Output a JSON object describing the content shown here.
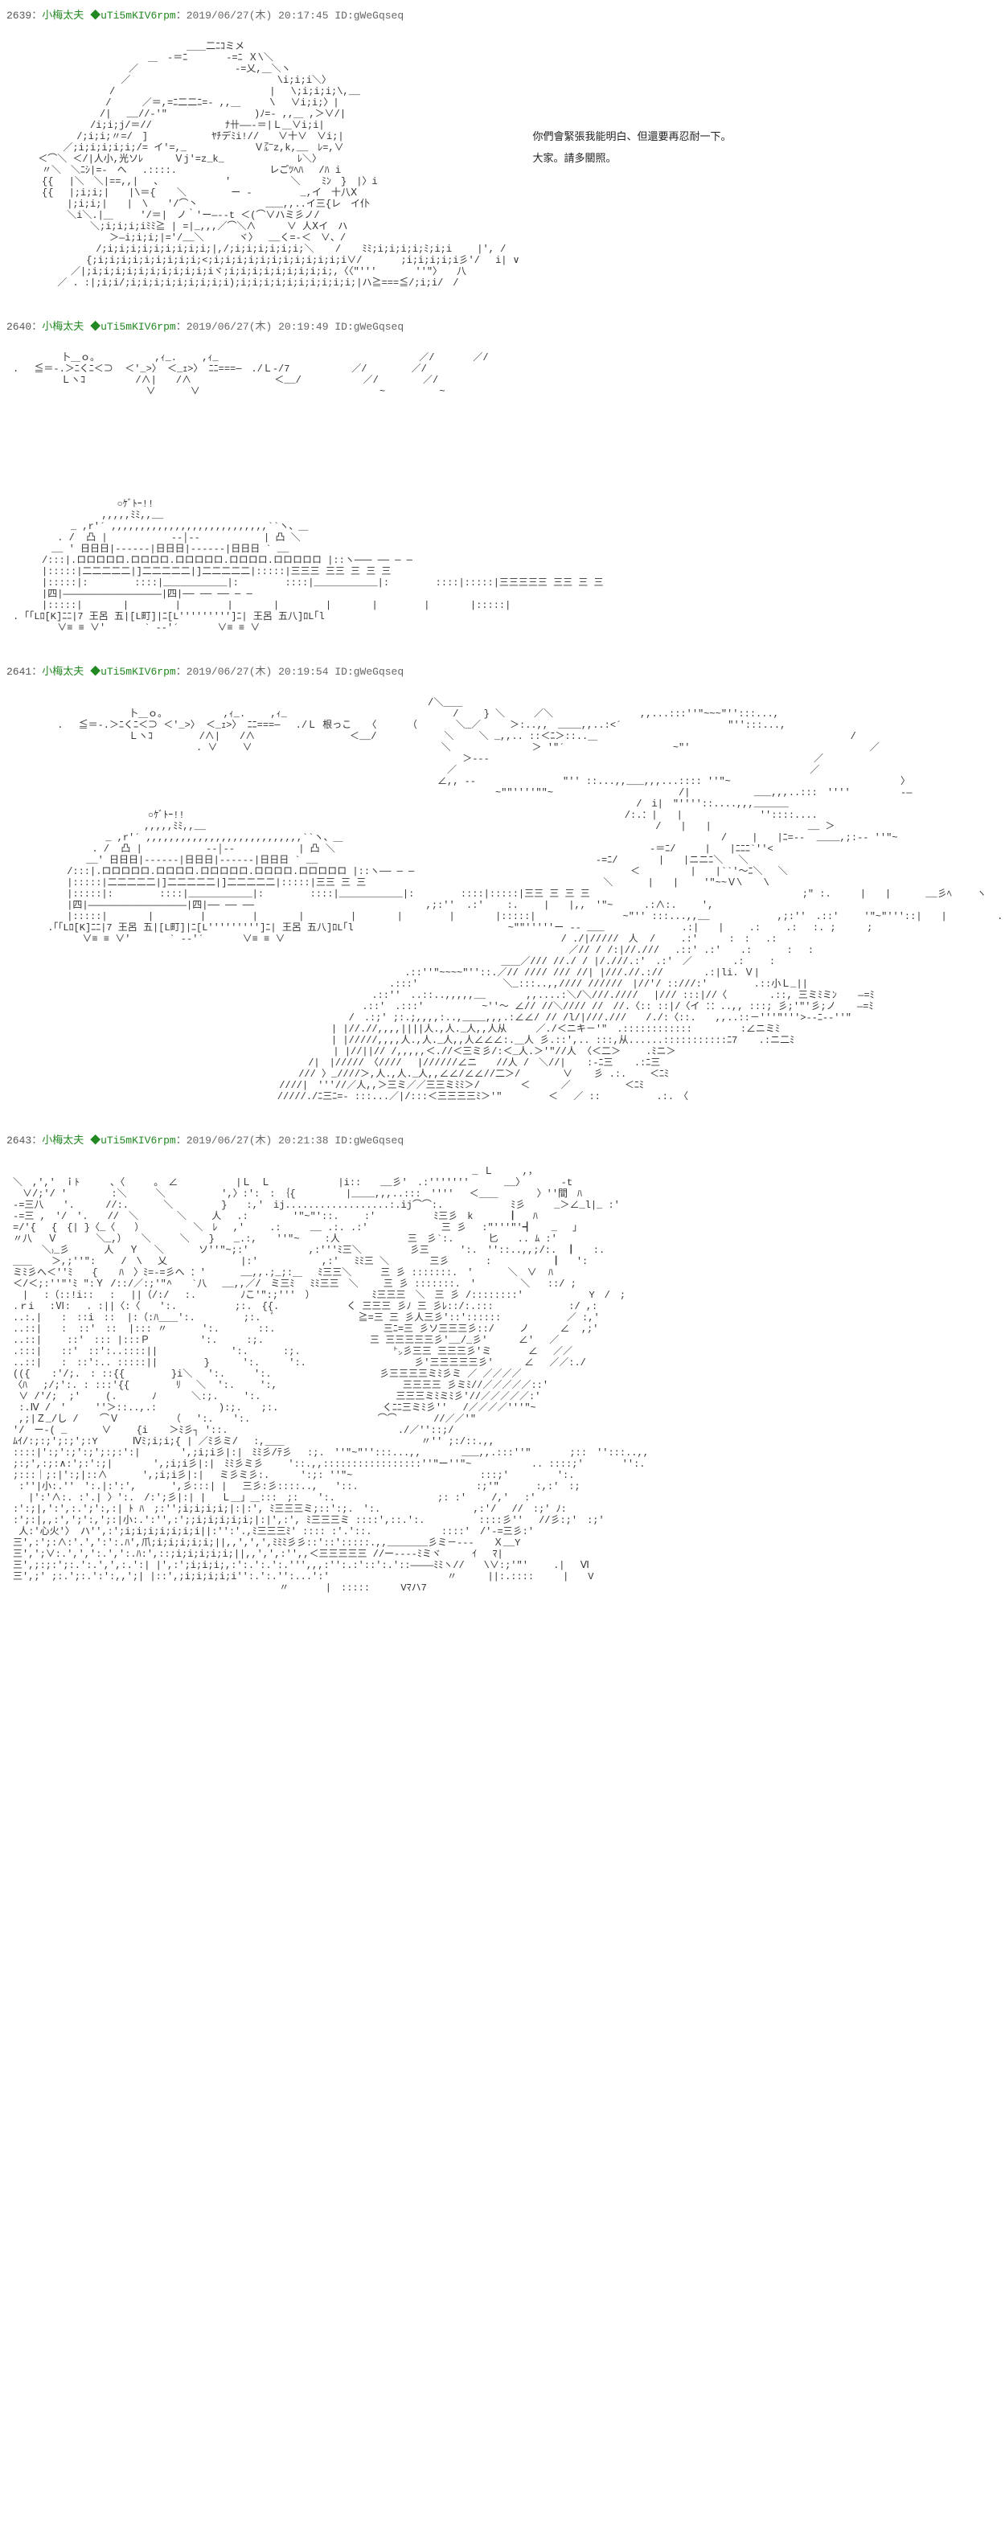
{
  "posts": [
    {
      "number": "2639",
      "name": "小梅太夫",
      "trip": "◆uTi5mKIV6rpm",
      "date": "2019/06/27(木) 20:17:45",
      "id": "ID:gWeGqseq",
      "sideText": {
        "line1": "你們會緊張我能明白、但還要再忍耐一下。",
        "line2": "大家。請多關照。"
      },
      "aa": "　　　　　　　　　　　　　　　　　　＿＿二ﾆｺミメ\n　　　　　　　　　　　　　　＿　‐＝ﾆ　　　　‐=ﾆ Ｘ\\＼\n　　　　　　　　　　　　／　　　　　　　　　　‐=乂,＿＼ヽ\n　　　　　　　　　　  ／ 　　　　　　　　　　　　　　 \\i;i;i＼〉\n　　　　　　　　　　/ 　 　 　 　 　　　　　　　　　|　 \\;i;i;i;\\,__\n　　　　　　　　　 /　 　 ／＝,=ﾆ二二ﾆ=- ,,＿　　　\\　 ∨i;i;〉|\n　　　　　　　　　/|　 __//-'\"　　　　　　　　　)ﾉ=- ,,＿ ,＞∨/|\n　　　　　　　　/i;i;j/＝//　　　　　　　 ﾅ卄――-＝|Ｌ＿∨i;i|\n　　　　　　 /;i;i;〃=/　]　　　　　 　ﾔﾁデﾐi!//　　∨十∨　∨i;|\n　　　　  ／;i;i;i;i;i;/= イ'=,_　　　　　　　Ｖ㌃z,k,__　ﾚ=,∨\n　　 ＜⌒＼ ＜/|人小,光ソﾚ　 　 Ｖj'=z_k_　　　　　 　　ﾚ＼〉\n　　　〃＼　＼ﾆｼ|=-　へ 　.::::.　 　 　 　 　 　 レごﾂﾍﾊ　 /ﾊ i\n　　　{{　 |＼　＼|==,,|　 、 　 　 　 　'　　　　　  ＼　  ﾐﾝ　}　|〉i\n　　　{{　 |;i;i;|　　|\\＝{ 　 ＼　　　　 ー ‐　　　　　_,イ　十八Ⅹ\n　　　　　 |;i;i;|　　|　\\　　'/⌒丶　　　　　　　___,,..イ三{レ　イ仆\n　　　　　 ＼i＼.|＿　   '/＝|　ノ｀'ー―‐-t ＜(⌒∨ハミ彡ノ/\n　　　　　　　　＼;i;i;i;iﾐﾐ≧ | =|_,,,／⌒＼∧　　  ∨ 人Ⅹイ　ハ\n　　　　　　　　　　＞―i;i;i;|='/__＼　　　 ヾ〉　 __く=-＜　∨、/\n　　　　　　　　 /;i;i;i;i;i;i;i;i;i;|,/;i;i;i;i;i;i;＼ 　 /　  ﾐﾐ;i;i;i;i;ﾐ;i;i　 　|', /\n　　　　　　　 {;i;i;i;i;i;i;i;i;i;<;i;i;i;i;i;i;i;i;i;i;i;i∨/　　　　;i;i;i;i;i彡'/　 i| ∨\n　　　　　　／|;i;i;i;i;i;i;i;i;i;i;iヾ;i;i;i;i;i;i;i;i;i;,〈〈\"'''　　　　''\"〉　　八\n　　　　 ／ . :|;i;i/;i;i;i;i;i;i;i;i;i);i;i;i;i;i;i;i;i;i;i;|ハ≧===≦/;i;i/　/"
    },
    {
      "number": "2640",
      "name": "小梅太夫",
      "trip": "◆uTi5mKIV6rpm",
      "date": "2019/06/27(木) 20:19:49",
      "id": "ID:gWeGqseq",
      "aa": "　　　　　卜＿ｏ。　　　　　  ,ｨ_.　　 ,ｨ_　　　　　　　　　 　 　 　 　 　 　 　 ／/　　　　／/\n. 　≦＝-.＞ﾆくﾆ＜⊃  ＜'_>〉 ＜_ｪ>〉 ﾆﾆ===─　./Ｌ-/7 　　 　 　 ／/ 　　　　／/\n　　　　　Ｌヽｺ　　　 　 /∧|　　/∧　　　　　　　　 ＜__/　 　 　 　 ／/　　　　 ／/\n　　 　 　 　 　 　 　 　 ∨　　　 ∨　　　　　　　　　　　　　　　　　　 ~　　　　　 ~\n\n\n\n\n\n\n\n\n\n　　　　　 　　　 　 ○ｹﾞﾄｰ!!\n　　　　　 　　　 ,,,,,ﾐﾐ,,__\n　　　　　　_ ,r'´ ,,,,,,,,,,,,,,,,,,,,,,,,,,,``ヽ、＿\n　　　　 . /  凸 |           --│--           | 凸 ＼\n　　　　__ ' 日日日|------|日日日|------|日日日 ` __\n　　　/:::|.ロロロロロ.ロロロロ.ロロロロロ.ロロロロ.ロロロロロ |::ヽ─── ── ─ ─\n　　　|:::::|二二二二二|]二二二二二|]二二二二二|:::::|三三三 三三 三 三 三\n　　　|:::::|:        ::::|___________|:        ::::|___________|:        ::::|:::::|三三三三三 三三 三 三\n　　　|四|―――――――――――――――――|四|── ── ── ─ ─\n　　　|:::::|       |        |        |       |        |       |        |       |:::::|\n. ｢「Lﾛ[K]ﾆﾆ|7 王呂 五|[L町]|ﾆ[L''''''''']ﾆ| 王呂 五八]ﾛL｢l\n　　　　 ∨≡ ≡ ∨'　　　　` --'´　　　　∨≡ ≡ ∨"
    },
    {
      "number": "2641",
      "name": "小梅太夫",
      "trip": "◆uTi5mKIV6rpm",
      "date": "2019/06/27(木) 20:19:54",
      "id": "ID:gWeGqseq",
      "aa": "　　　　　　　　　　　　　　　　　　　　　　　　　　　　　　　　　　　　　　　　　　　/＼＿＿\n　　　　　　　　　　　　卜＿ｏ。 　　　 　 ,ｨ_.　　 ,ｨ_　　　　　　　　　　　　　　　 　 /　　 } ＼　　　／＼　　　　　　　　　,,...:::''\"~~~\"'':::...,\n　　　　 . 　≦＝-.＞ﾆくﾆ＜⊃ ＜'_>〉 ＜_ｪ>〉 ﾆﾆ===─　 ./Ｌ 根っこ　 〈　　  （　　　　＼_／　　　＞:..,,　____,,..:<´　　　　　　　　　　　\"'':::...,\n　　　　　　　　　　　　Ｌヽｺ　　 　  /∧|　　/∧　　　　　　 　 　 ＜__/　　　　　　　＼　　 ＼ _,,.. ::＜ﾆ＞::..＿　　　　　　　　　　　　　　　　　　　　　 　　 　　/\n　　　　　　　　　　　　　　　　　　　. ∨　　 ∨　　　　　　　　　　　　　　　　　　　 ＼              ＞ '\"´　　　　　 　　　　　 ~\"'　　　　　　　　　　　　　 　　　　　／\n　　　　　　　　　　　　　　　　　　　　　　　　　　　　　　　　　　　　　　　　　　　　　　 ＞--‐　　　　　　　　　　　　　　　　　　　　　　　　　　　　　　　　 　／\n　　　　　　　　　　　　　　　　　　　　　　　　　　　　　　　　　　　　　　　　　　　　　／　　　　　　　　　　　　　　　　　　　　　　　　　　　　　　　　　　　　 ／\n　　　　　　　　　　　　　　　　　　　　　　　　　　　　　　　　　　　　　　　　　　　　∠,, -‐　　　　　　　　　\"'' ::...,,___,,,...:::: ''\"~　　　　　　　　　　　　　　　　　 〉\n　　　　　　　　　　　　　　　　　　　　　　　　　　　　　　　　　　　　　　　　　　　　　　　　　　~\"\"''''\"\"~　　　　　　　　　　　　　/|　　　　　　 ___,,,..:::　''''　　　 　 -―\n　　 　 　 　 　 　 　　　　　　　　　　　　　　　　　　　　　　　　　　　　　　　　　　　　　　　　　　　　　　　　　　　　　　/　i|　\"''''::....,,,______\n　　　　　　　　　　　　　　○ｹﾞﾄｰ!!　　　　　　　　　　　　　　　　　　　　　　　　　　　　　　　　　　　　　　　　　　　　　 /:.：|　　|　　　　　　　　''::::....\n　　　　　　 　　　　　　　,,,,,ﾐﾐ,,__　　　　　　　　　　　　　　　　　　　　　　　　　　　　　　　　　　　　　　　　　　　　　 　/　　|　　|　　　　　　　　　　__ ＞\n　　　　　　　　 　_ ,r'´ ,,,,,,,,,,,,,,,,,,,,,,,,,,,``ヽ、＿　　　　　　　　　　　　　　　　　　　　　　　　　　　　　　　　　　　　　　  /　　 |　　|ﾆ=‐-  ____,;:-‐ ''\"~\n　　　　　　　  . /  凸 |           --│--           | 凸 ＼　　　　　　　　　　　　　　　　　　　　　　　　　　　　　　　　 -＝ﾆ/　　　|　　|ﾆﾆﾆ`''<\n　　　　　　　 __' 日日日|------|日日日|------|日日日 ` __　　　　　　　　　　　　　　　　　 　 　 　 　 　 　 　 -=ﾆ/ 　 　　|　　|ニニﾆ＼　 ＼\n　　　　　 /:::|.ロロロロロ.ロロロロ.ロロロロロ.ロロロロ.ロロロロロ |::ヽ── ─ ─　　　　　　　　　 　 　 　 　 　 　 　 　 ＜　　　 　 |　　|``'～ﾆ＼　 ＼\n　　　　　 |:::::|二二二二二|]二二二二二|]二二二二二|:::::|三三 三 三　　　　　　　　　　　　　　　　　　　　　　　　 ＼　　　 |　　|　　 '\"~~Ｖ\\　  \\\n　　　　　 |:::::|:        ::::|___________|:        ::::|___________|:        ::::|:::::|三三 三 三 三　　　　　　　　　　　　　　　　　　　　　　;\" :.　　　|　　|　　 　__彡ﾍ　 　ヽ\n　　　　　 |四|―――――――――――――――――|四|── ── ──　　　　　 　 　 　 　 　 　 　 　,;:''  .:'    :.　　 |　　|,,　'\"~　 　 .:∧:.　 　',\n　　　　　 |:::::|       |        |        |       |        |       |        |       |:::::|　　　　　　　　　~\"'' :::...,,__　　　　　　　,;:''　.::'　　 '\"~\"'''::|　　|　　　 　 .:　 : :.:　 　;\n　　　 .｢「Lﾛ[K]ﾆﾆ|7 王呂 五|[L町]|ﾆ[L''''''''']ﾆ| 王呂 五八]ﾛL｢l　　　　　　　　　　　　　　　　~\"\"'''''ー -- ___　 　 　 　 　 .:|　　|　　 .:　 　.:　 :. ;　 　 ;\n　　　　 　 　∨≡ ≡ ∨'　　　　` --'´　　　　∨≡ ≡ ∨　　　　　　　　　　　　　　　　　　　　　　　　　　　 　/ ./|/////　人  /　　 .:'　 　 :　:　 .:\n　　　　　　　　　　　　　　　　　　　　　　　　　　　　　　　　　　　　　　　　　　　　　　　　　　　　　　　　　 ／// / /:|//.///　 .::' .:'　　.:　　　 :　 :\n　　　　　　　　　　　　　　　　　　　　　　　　　　　　　　　　　　　　　　　　　　　　　　　　　　 ＿＿／/// //./ / |/.///.:'　.:'　／　　　  .:　 　:\n　　　　　　　　　　　　　　　　　　　　　　　　　　　　　　　　　　　　　　　　 .::''\"~~~~\"''::.／// //// /// //| |///.//.://　　 　 .:|li. Ｖ|\n　　　　　　　　　　　　　　　　　　　　　　　　　　　　　　　　　　　　　　　.:::'　　　　　 　 　 ＼_:::..,,//// //////　|//'/ ::///:'　 　 　 .::小Ｌ_||\n　　　　　　　　　　　　　　　　　　　　　　　　　　　　　　　　　　　　  .::''　..::..,,,,,__　　　  ,,....:＼/＼///.////　 |/// :::|//〈  　 　 .::, 三ミﾐミﾝ 　 ―=ﾐ\n　　　　　　　　　　　　　　　　　　　　　　　　　　 　 　 　 　 　 　 .::'　.:::'　　　　　　~''～ ∠// //＼//// //　//.〈:: ::|/〈イ ：：..,, :::; 彡;'\"'彡;ノ 　 ―=ﾐ\n　　　　　　　　　　　　　　　　　　　　　　　 　 　 　 　 　 　 　 /　.:;' ;:.;,,,,:..,____,,,.:∠∠/ // /l/|///.///　　/./:〈::.　　,,..::－'''\"'''>-‐ﾆ-‐''\"\n　　　　　　　　　　　　　　　　　　　　　　　　　　　　　　　　　| |//.//,,,,||||人.,人._人,,人从　　　／./＜ニキ－'\"　.::::::::::::　　　　　:∠ニミﾐ\n　　　　　　　　　　　　　　　　　　　　　　　　　　　　　　　　　| |/////,,,,人.,人._人,,人∠∠∠:.＿人 彡.::',.. :::,从......:::::::::::ﾆ7 　 .:ニ二ﾐ\n　　　　　　　　　　　　　　　　　　　　　　　　　　　　　　 　 　| |//||// /,,,,,＜.//＜三ミ彡/:＜_人.＞'\"//人 〈＜二＞　　 .ﾐニ＞\n　　　　　　　　　　　　　　　　　　　　　　　　　　　　　　 /|　|/////　〈////　 |//////∠ニ　　//人 /　＼//| 　 :‐ﾆ三 　 .:ﾆ三\n　　　　　　　　　　　　　　　　　　　　　　　　　　　　　 /// 〉_////＞,人.,人._人,,∠∠/∠∠//二＞/   　 　∨  　彡 .:.    ＜ﾆﾐ\n　　　　　　　　　　　　　　　　　　　　　　　　　　　 ////|　'''//／人,,＞三ミ／／三三ミﾐﾐ＞/　 　 　＜ 　　 ／ 　   　  ＜ﾆﾐ\n　　　　　　　　　　　　　　　　　　　　　　 　 　 　 /////./ﾆ三ﾆ=- :::...／|/:::＜三三三三ﾐ＞'\"　 　 　 ＜　 ／ ::　　  　　 .:.　〈"
    },
    {
      "number": "2643",
      "name": "小梅太夫",
      "trip": "◆uTi5mKIV6rpm",
      "date": "2019/06/27(木) 20:21:38",
      "id": "ID:gWeGqseq",
      "aa": "　　　　　　　　　　　　　　　　　　　　　　　　　　　　　　　　　　　　　　　　　　　　　　　 _ Ｌ　　　,，\n＼　,','　ｉﾄ　 　 ､〈　　　。　∠　　　　　　|Ｌ　Ｌ　　　　　　　|i::　　__彡'　.:'''''''　　　 __〉　　 　 -t\n　∨/;'/ '　　　　 :＼　　　＼　　　 　  ',〉:':　:　｛{　　 　　 |____,,,..:::　''''　 ＜＿＿　　　　〉''間　ﾊ\n-=三八　　'.　 　 //:.　　　 ＼　　　　　}　　:,'　ij..................:.ij⌒⌒:.　　　　　　　ﾐ彡　　　_＞∠_l|_ :'\n-=三 ,　'/　'.　　//　＼　　　　＼　　 人　 .:　　　　 '\"~\"'::.　　 :'　　　　　　ﾐ三彡　k　　　 ┃　 ﾊ\n=/'{　 {　{| }〈_〈　　）　　　　　 ＼　ﾚ　 ,'　　 .:　　　__ .:. .:'　　　　　　　 三 彡　 :\"'''\"'┫　　_　 ｣\n〃八　 Ｖ　　　　＼_,）　　＼　　　＼　　}　　_.:,　　''\"~　　 :人　　　　　　　三　彡`:.　　　 匕　　.. ﾑ :'\n　　　＼₎_彡 　　　人　 Ｙ　 ＼　　　 ソ''\"~;:'　　　　 　 ,:'''ﾐ三＼　　　　　彡三　 　 ':.　''::..,,;/:.　┃   :.\n＿＿　　＞,;''\":　 　/　\\　 乂　　　　　　　 |:'　　　　　　 ,:'　 ﾐﾐ三 ＼　　 　 三彡 　 　 :　　　　 　 ┃　 ':\nミﾐ彡へ＜''ﾐ　　{　  ﾊ　〉ﾐ=-=彡へ ：'　　　 __,,.;_;:＿　 ﾐ三三＼　　　三 彡 :::::::.　'　　　 ＼　∨  ﾊ\n＜/＜;:''\"'ﾐ ″:Ｙ /::/／:;'\"^　　`八　 __,,／/　ミ三ﾐ　 ﾐﾐ三三　＼　　 三 彡 :::::::.　'　　　　 ＼   ::/ ;\n　|　 :（::!i::　 :　 ||（/:/　 :.　　　　 ﾉこ'\":;'''　）　 　 　 　 ﾐ三三三　＼　三 彡 /::::::::'　　　 　 　 Y　/　;\n.ｒi　 :Ⅵ:　 . :||〈:〈　　':.　　　　　　;:.　{{.　　　　　　　く 三三三 彡ﾉ 三 彡ﾚ::/:.:::　　　 　 　 　:/ ,:\n..:.|　　:　::i　::  |:（:ﾊ＿＿':.　　　　　;:.　ﾞ　　　　　　　　 ≧=三 三 彡人三彡'::'::::::　　　　 　  ／ :,'\n..::|　　:  ::'　::  |::: 〃　　 　':.　　　　::.　　　　　　　　　 　 三ﾆ=三 彡ソ三三三彡::/　 　ノ　  　∠  ,;'\n..::|　　 ::'　::: |:::Ｐ 　　　　 ':.　　　:;.　　　　　　　　　　　三 三三三三三彡'__/_彡'　 　 ∠'　 ／\n.:::|　　::'　::':..::::|| 　 　 　 　  ':.　　　 :;.　　　　　　　　　 ㌧彡三三 三三三彡'ミ 　 　 ∠　 ／／\n..::|　　:　::':.. :::::|| 　 　 　}  　  ':.　　　':.　　　　　　　　　 　 彡'三三三三三彡'　 　 ∠　 ／／:./\n(({ 　 :'/;.　: ::{{　 　 　 }i＼　 ':.　　　':.　　　　　　　　　 　 彡三三三三ミﾐ彡ミ ／ ／／／／\n〈ﾊ　 ;/;':. : :::'{{　 　 　 ﾘ　 ＼  ':.　　 ':,　　　　　　 　 　 　 　 三三三三 彡ミﾐ//／／／／／::'\n ∨ /'/;  ;'　 　(.　　　 ﾉ　　　 ＼:;.　　 ':.　　　　　　　 　 　 　 　 三三三ミﾐミﾐ彡'//／／／／／:'\n :.Ⅳ /　'　　　''＞::..,.:　 　 　 　 ):;.　　;:.　　　　　　　 　 　 くﾆﾆ三ミﾐ彡''　 /／／／／'''\"~\n ,;|Ｚ_/し / 　 ⌒Ｖ 　 　 　 （　 ':.　　':.　　　　　　　　　　　 　 ⌒⌒ 　 　 //／／'\"\n'/　ー‐( _　　　 ∨　　 {i 　 ＞ﾐ彡┐ '::.　　　　　　　　　 　 　 　 　 　 ./／''::;/\nﾑｲ/:;:;';:;';:Y　　　 Ⅳﾐ;i;i;{ | ／ﾐ彡ミ/　 :,＿＿ 　 　　　　　 　 　 　 　 〃'' ;:/::.,,\n::::|':;':;':;';:;:':|　　 　 ',;i;i彡|:|　ﾐﾐ彡/ﾃ彡　 :;.　''\"~\"'':::...,,　　  　___,,.:::''\"　　　　;::　'':::..,,\n;:;',:;:∧:';:':;|　　　  ',;i;i彡|:|　ﾐﾐ彡ミ彡　 　'::.,,:::::::::::::::::''\"ー''\"~　　　 　 　.. ::::;'　　　　'':.\n;:::｜;:|':;|::∧　　　 ',;i;i彡|:|　 ミ彡ミ彡:.　 　 ':;: ''\"~　　　 　 　 　 　 　 　 :::;'　　　　　':.\n :''|小:.''　':.|:':',　　 　',彡:::| |　 三彡:彡::::..,   '::.　　　　　　　　　　　  :;'\" 　 　 :,:'　:;\n　 |':'∧:. :'.| 〉':.　/:';彡|:| |　 Ｌ＿」＿:::　;:　　':.　 　　　　　　　　　;: :'　 　/,' 　:'\n:':;|,':',:.';':,:| ﾄ ﾊ　;:'';i;i;i;i;|:|:', ﾐ三三三ミ;::':;.　':.　　　　　　      ,:'/　 //　:;' ﾉ:\n:';:|,,:',';':,';:|小:.':'',:';;i;i;i;i;i;|:|',:', ﾐ三三三ミ ::::',::.':.　　　　　 ::::彡''　 //彡:;'　:;'\n 人:'心火'〉 ハ'',:';i;i;i;i;i;i;i||:'':'.,ﾐ三三三ﾐ' :::: :'.'::.　　　　　 　 ::::'　/'-=三彡:'\n三',:';:∧:'.',':':.ﾊ',爪;i;i;i;i;i;||,,',',',ﾐﾐﾐ彡彡::'::':::::.,,_______彡ミ－‐‐‐　　Ｘ__Y\n三',';∨:.',',':.',':.ﾊ:',::;i;i;i;i;i;||,,',',:'',,＜三三三三三 //ー----ﾐミヾ　　  ｲ　 ﾏ|\n三',;:;:';:.':.',',:.':| |',:';i;i;i;,:':.':.':.''',,,:'':.:'::':.'::――――ﾐﾐヽ//　　\\∨:;'\"'　　 .|　 Ⅵ\n三',;' ;:.';:.':':,,';| |::',;i;i;i;i;i'':.':.'':...':'　　　　　　　　　　 　 〃　　  ||:.::::　　　|　　V\n　　　　　　　　　　　　　　　　　　　　　　　　　　　 〃 　 　 |　:::::　 　 Vﾏハ7"
    }
  ],
  "colors": {
    "name": "#228822",
    "text": "#333333",
    "meta": "#666666",
    "background": "#ffffff"
  }
}
